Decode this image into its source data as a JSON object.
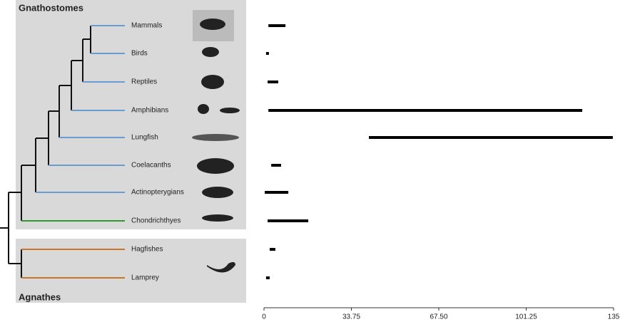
{
  "chart_data": {
    "type": "range-bar",
    "groups": [
      "Gnathostomes",
      "Agnathes"
    ],
    "categories": [
      "Mammals",
      "Birds",
      "Reptiles",
      "Amphibians",
      "Lungfish",
      "Coelacanths",
      "Actinopterygians",
      "Chondrichthyes",
      "Hagfishes",
      "Lamprey"
    ],
    "low": [
      1.7,
      0.8,
      1.4,
      1.7,
      40.5,
      2.8,
      0.3,
      1.4,
      2.2,
      0.8
    ],
    "high": [
      8.3,
      1.9,
      5.5,
      122.9,
      134.7,
      6.6,
      9.4,
      17.1,
      4.4,
      2.2
    ],
    "color": "#000000",
    "xlim": [
      0,
      135
    ],
    "xticks": [
      0,
      33.75,
      {
        "value": 67.5,
        "label": "67.50"
      },
      101.25,
      135
    ]
  }
}
